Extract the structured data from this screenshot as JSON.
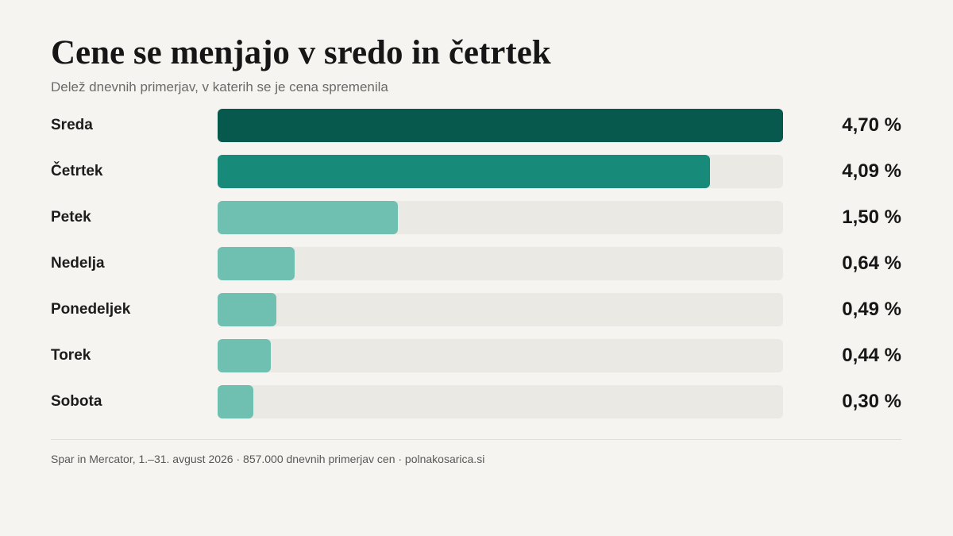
{
  "chart_data": {
    "type": "bar",
    "orientation": "horizontal",
    "title": "Cene se menjajo v sredo in četrtek",
    "subtitle": "Delež dnevnih primerjav, v katerih se je cena spremenila",
    "categories": [
      "Sreda",
      "Četrtek",
      "Petek",
      "Nedelja",
      "Ponedeljek",
      "Torek",
      "Sobota"
    ],
    "values": [
      4.7,
      4.09,
      1.5,
      0.64,
      0.49,
      0.44,
      0.3
    ],
    "value_labels": [
      "4,70 %",
      "4,09 %",
      "1,50 %",
      "0,64 %",
      "0,49 %",
      "0,44 %",
      "0,30 %"
    ],
    "xlim": [
      0,
      4.7
    ],
    "grid": false,
    "legend": "none",
    "bar_colors": [
      "#07584d",
      "#178a79",
      "#6fc0b1",
      "#6fc0b1",
      "#6fc0b1",
      "#6fc0b1",
      "#6fc0b1"
    ],
    "track_color": "#ebe9e4",
    "source": "Spar in Mercator, 1.–31. avgust 2026 · 857.000 dnevnih primerjav cen · polnakosarica.si"
  }
}
